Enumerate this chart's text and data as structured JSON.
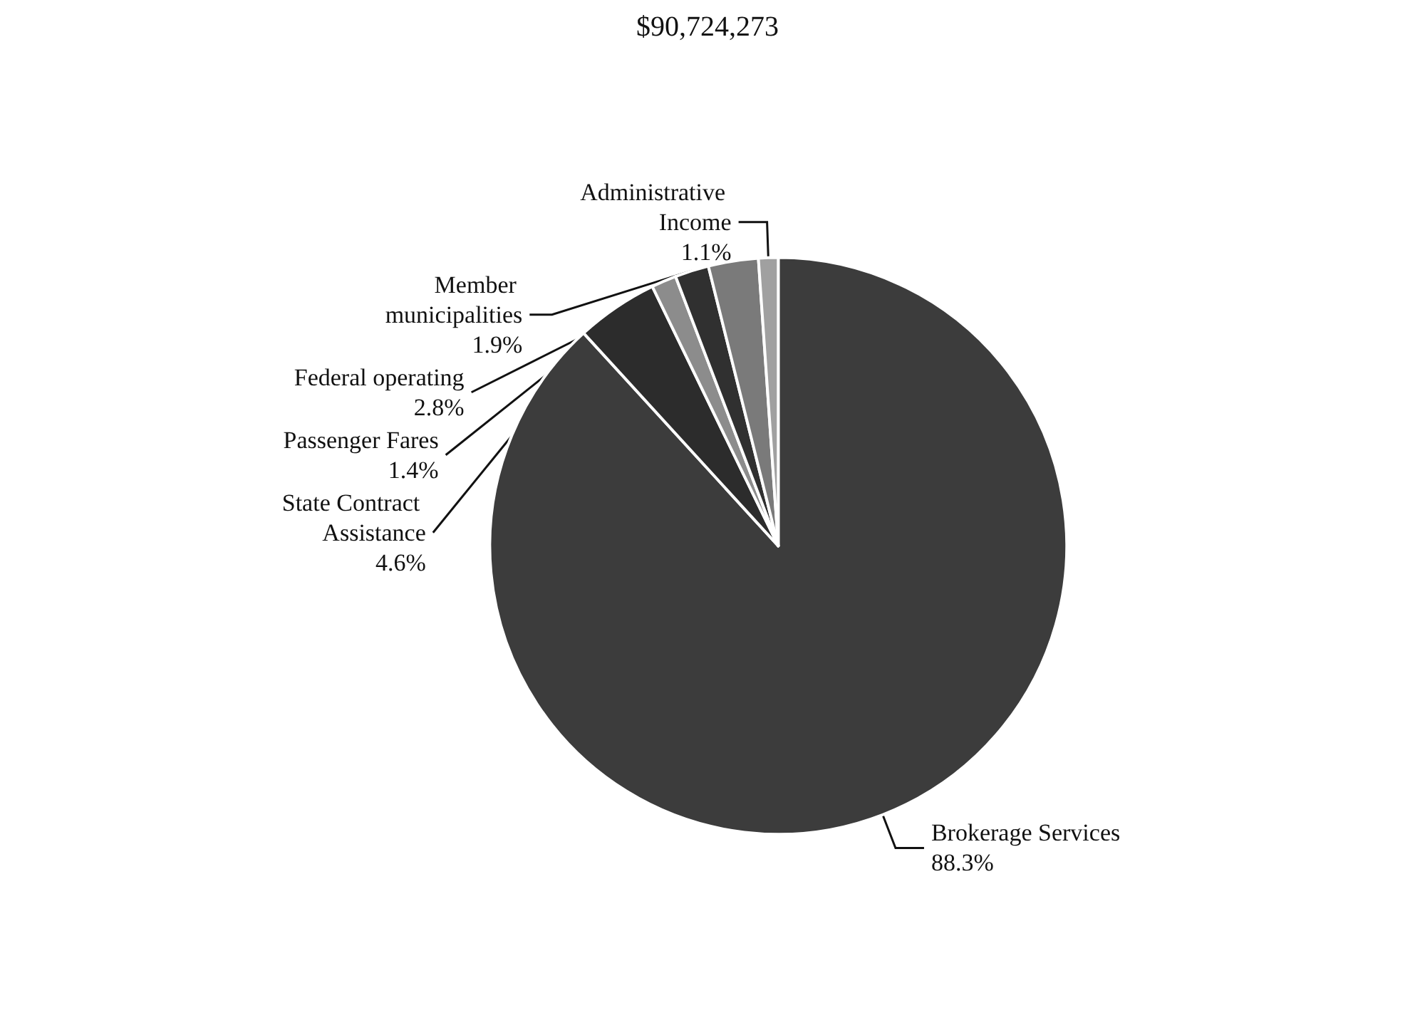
{
  "chart_data": {
    "type": "pie",
    "title": "$90,724,273",
    "categories": [
      "Brokerage Services",
      "State Contract Assistance",
      "Passenger Fares",
      "Member municipalities",
      "Federal operating",
      "Administrative Income"
    ],
    "values": [
      88.3,
      4.6,
      1.4,
      1.9,
      2.8,
      1.1
    ],
    "value_labels": [
      "88.3%",
      "4.6%",
      "1.4%",
      "1.9%",
      "2.8%",
      "1.1%"
    ],
    "colors": [
      "#3c3c3c",
      "#2c2c2c",
      "#8c8c8c",
      "#303030",
      "#7a7a7a",
      "#a0a0a0"
    ],
    "legend": false
  }
}
